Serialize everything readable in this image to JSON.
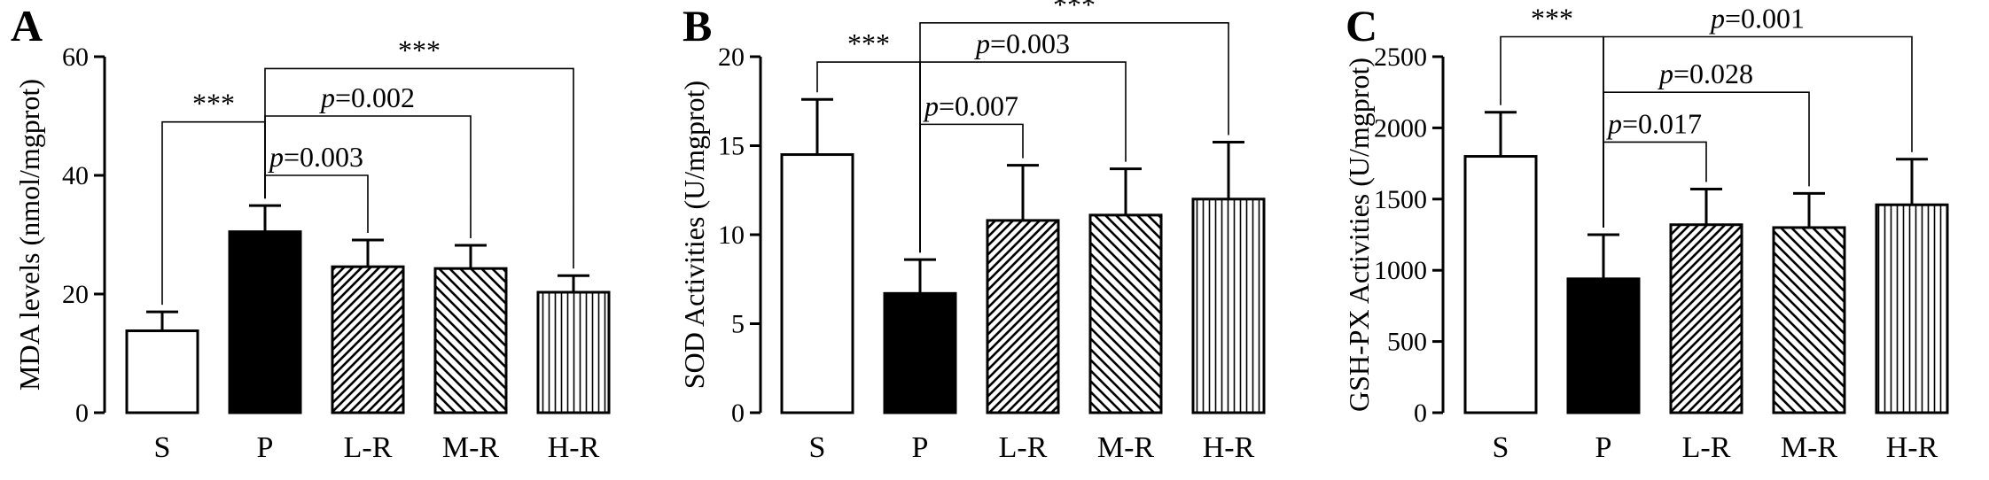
{
  "chart_data": [
    {
      "panel": "A",
      "type": "bar",
      "ylabel": "MDA levels (nmol/mgprot)",
      "ylim": [
        0,
        60
      ],
      "yticks": [
        0,
        20,
        40,
        60
      ],
      "categories": [
        "S",
        "P",
        "L-R",
        "M-R",
        "H-R"
      ],
      "values": [
        13.8,
        30.5,
        24.6,
        24.3,
        20.3
      ],
      "errors": [
        3.2,
        4.4,
        4.5,
        3.9,
        2.8
      ],
      "patterns": [
        "white",
        "black",
        "diag-right",
        "diag-left",
        "vertical"
      ],
      "comparisons": [
        {
          "from": 0,
          "to": 1,
          "label": "***",
          "level": 49
        },
        {
          "from": 1,
          "to": 2,
          "label": "p=0.003",
          "level": 40
        },
        {
          "from": 1,
          "to": 3,
          "label": "p=0.002",
          "level": 50
        },
        {
          "from": 1,
          "to": 4,
          "label": "***",
          "level": 58
        }
      ]
    },
    {
      "panel": "B",
      "type": "bar",
      "ylabel": "SOD Activities (U/mgprot)",
      "ylim": [
        0,
        20
      ],
      "yticks": [
        0,
        5,
        10,
        15,
        20
      ],
      "categories": [
        "S",
        "P",
        "L-R",
        "M-R",
        "H-R"
      ],
      "values": [
        14.5,
        6.7,
        10.8,
        11.1,
        12.0
      ],
      "errors": [
        3.1,
        1.9,
        3.1,
        2.6,
        3.2
      ],
      "patterns": [
        "white",
        "black",
        "diag-right",
        "diag-left",
        "vertical"
      ],
      "comparisons": [
        {
          "from": 0,
          "to": 1,
          "label": "***",
          "level": 19.7
        },
        {
          "from": 1,
          "to": 2,
          "label": "p=0.007",
          "level": 16.2
        },
        {
          "from": 1,
          "to": 3,
          "label": "p=0.003",
          "level": 19.7
        },
        {
          "from": 1,
          "to": 4,
          "label": "***",
          "level": 21.9
        }
      ]
    },
    {
      "panel": "C",
      "type": "bar",
      "ylabel": "GSH-PX Activities (U/mgprot)",
      "ylim": [
        0,
        2500
      ],
      "yticks": [
        0,
        500,
        1000,
        1500,
        2000,
        2500
      ],
      "categories": [
        "S",
        "P",
        "L-R",
        "M-R",
        "H-R"
      ],
      "values": [
        1800,
        940,
        1320,
        1300,
        1460
      ],
      "errors": [
        310,
        310,
        250,
        240,
        320
      ],
      "patterns": [
        "white",
        "black",
        "diag-right",
        "diag-left",
        "vertical"
      ],
      "comparisons": [
        {
          "from": 0,
          "to": 1,
          "label": "***",
          "level": 2640
        },
        {
          "from": 1,
          "to": 2,
          "label": "p=0.017",
          "level": 1900
        },
        {
          "from": 1,
          "to": 3,
          "label": "p=0.028",
          "level": 2250
        },
        {
          "from": 1,
          "to": 4,
          "label": "p=0.001",
          "level": 2640
        }
      ]
    }
  ]
}
